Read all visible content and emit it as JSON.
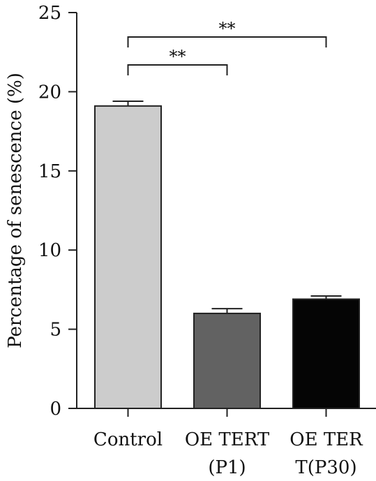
{
  "chart_data": {
    "type": "bar",
    "categories": [
      [
        "Control"
      ],
      [
        "OE TERT",
        "(P1)"
      ],
      [
        "OE TER",
        "T(P30)"
      ]
    ],
    "values": [
      19.1,
      6.0,
      6.9
    ],
    "errors": [
      0.3,
      0.3,
      0.2
    ],
    "colors": [
      "#cccccc",
      "#626262",
      "#050505"
    ],
    "ylabel": "Percentage of senescence (%)",
    "ylim": [
      0,
      25
    ],
    "yticks": [
      0,
      5,
      10,
      15,
      20,
      25
    ],
    "grid": false,
    "legend": "none",
    "significance": [
      {
        "from": 0,
        "to": 1,
        "label": "**"
      },
      {
        "from": 0,
        "to": 2,
        "label": "**"
      }
    ]
  }
}
